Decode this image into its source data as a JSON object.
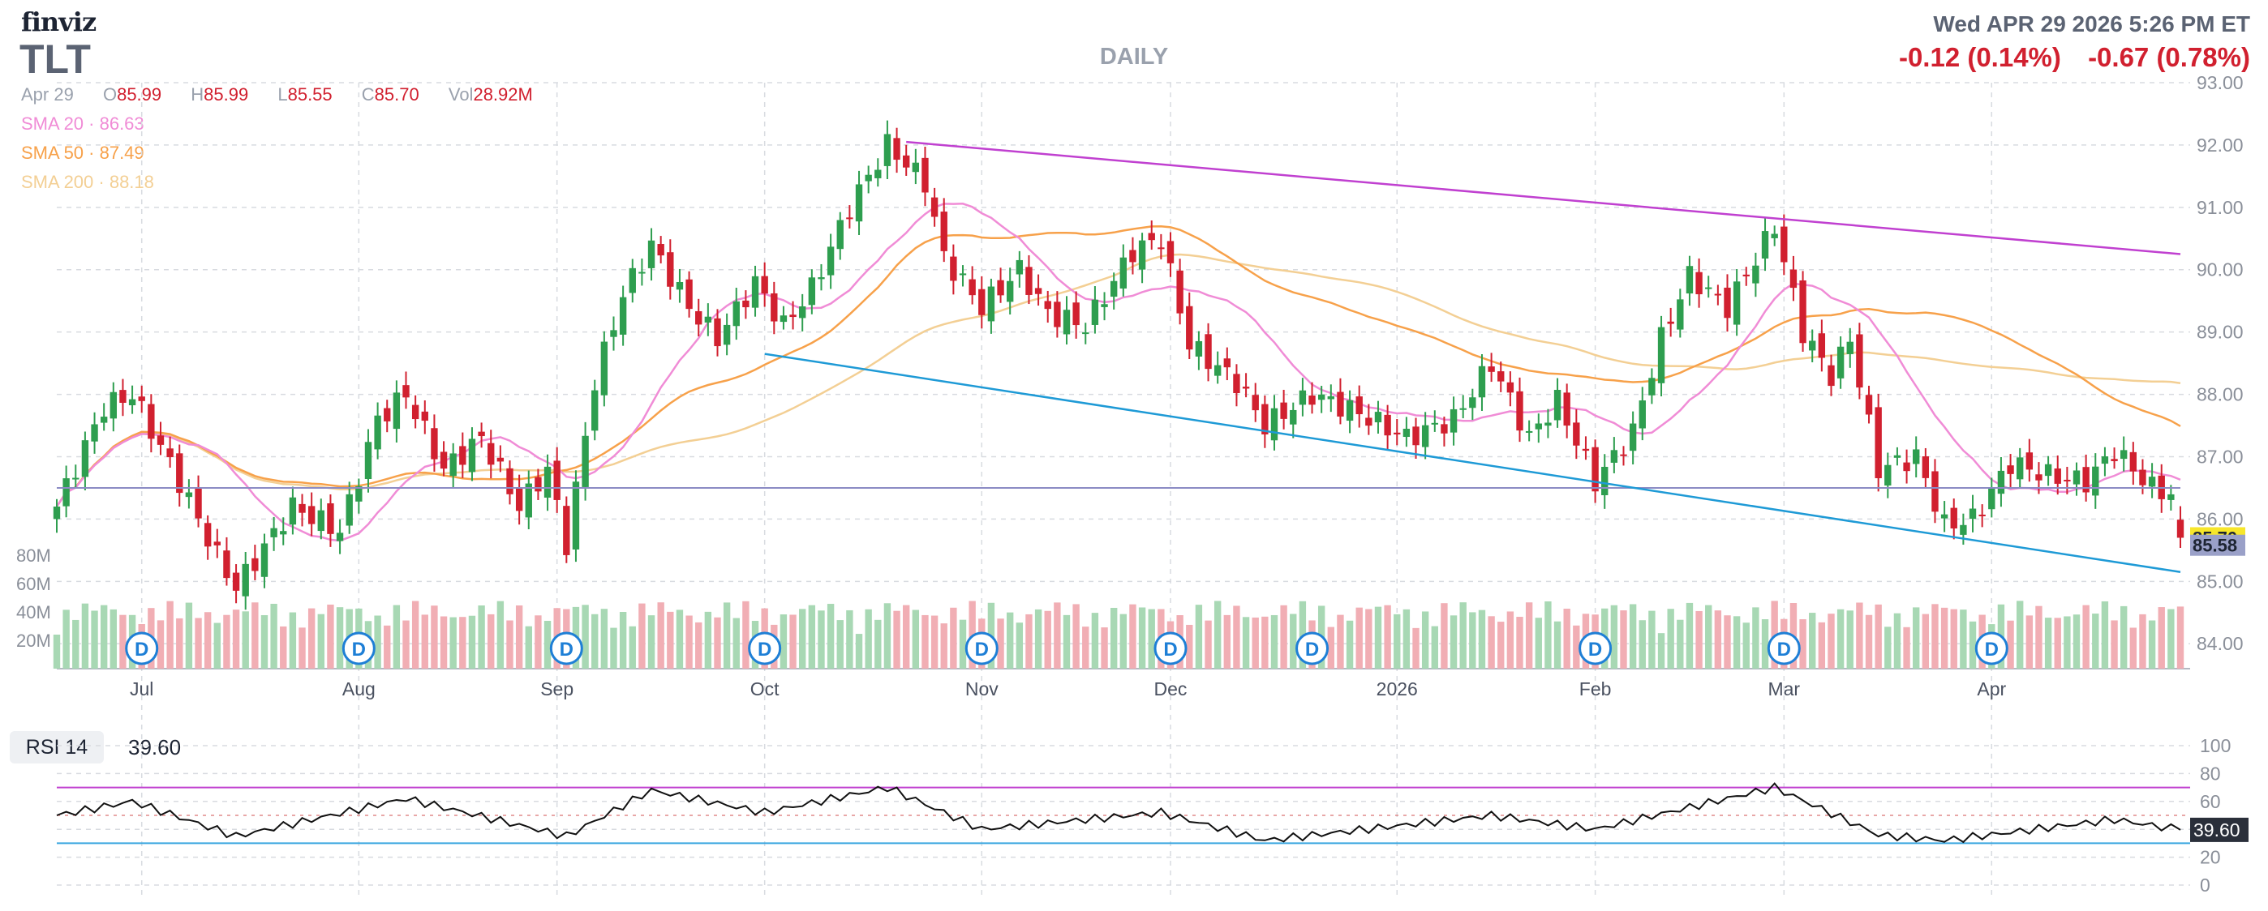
{
  "header": {
    "logo": "finviz",
    "ticker": "TLT",
    "timeframe": "DAILY",
    "datetime": "Wed APR 29 2026 5:26 PM ET",
    "change_after_hours": "-0.12 (0.14%)",
    "change_day": "-0.67 (0.78%)"
  },
  "ohlc": {
    "date": "Apr 29",
    "open_label": "O",
    "open": "85.99",
    "high_label": "H",
    "high": "85.99",
    "low_label": "L",
    "low": "85.55",
    "close_label": "C",
    "close": "85.70",
    "vol_label": "Vol",
    "vol": "28.92M"
  },
  "sma": {
    "sma20": "SMA 20 · 86.63",
    "sma50": "SMA 50 · 87.49",
    "sma200": "SMA 200 · 88.18"
  },
  "colors": {
    "up": "#2e9e4f",
    "down": "#d1202f",
    "sma20": "#f08cd6",
    "sma50": "#f7a14a",
    "sma200": "#f3cf94",
    "trend_upper": "#c040d0",
    "trend_lower": "#1e9ad6",
    "support": "#8b8bc4"
  },
  "badges": {
    "close": "85.70",
    "after_hours": "85.58",
    "rsi": "39.60"
  },
  "rsi": {
    "label": "RSI 14",
    "value": "39.60"
  },
  "dividend_marker": "D",
  "chart_data": {
    "type": "candlestick",
    "title": "",
    "xlabel": "",
    "ylabel": "",
    "ylim": [
      83.6,
      93.0
    ],
    "price_ticks": [
      "93.00",
      "92.00",
      "91.00",
      "90.00",
      "89.00",
      "88.00",
      "87.00",
      "86.00",
      "85.00",
      "84.00"
    ],
    "volume_ticks": [
      "80M",
      "60M",
      "40M",
      "20M"
    ],
    "rsi_ticks": [
      "100",
      "80",
      "60",
      "40",
      "20",
      "0"
    ],
    "x_labels": [
      "Jul",
      "Aug",
      "Sep",
      "Oct",
      "Nov",
      "Dec",
      "2026",
      "Feb",
      "Mar",
      "Apr"
    ],
    "dividend_dates": [
      "2025-07-01",
      "2025-08-01",
      "2025-09-02",
      "2025-10-01",
      "2025-11-03",
      "2025-12-01",
      "2025-12-22",
      "2026-02-02",
      "2026-03-02",
      "2026-04-01"
    ],
    "horizontal_line": 86.5,
    "trendline_upper": {
      "from": [
        "2025-10-22",
        92.05
      ],
      "to": [
        "2026-04-29",
        90.25
      ]
    },
    "trendline_lower": {
      "from": [
        "2025-10-01",
        88.65
      ],
      "to": [
        "2026-04-29",
        85.15
      ]
    },
    "sma_last": {
      "sma20": 86.63,
      "sma50": 87.49,
      "sma200": 88.18
    },
    "anchors": [
      [
        "2025-06-18",
        86.2
      ],
      [
        "2025-06-25",
        87.8
      ],
      [
        "2025-06-30",
        88.0
      ],
      [
        "2025-07-07",
        86.6
      ],
      [
        "2025-07-11",
        85.4
      ],
      [
        "2025-07-15",
        84.9
      ],
      [
        "2025-07-23",
        86.2
      ],
      [
        "2025-07-30",
        85.8
      ],
      [
        "2025-08-05",
        87.6
      ],
      [
        "2025-08-08",
        88.0
      ],
      [
        "2025-08-14",
        86.8
      ],
      [
        "2025-08-20",
        87.3
      ],
      [
        "2025-08-26",
        86.2
      ],
      [
        "2025-08-29",
        86.8
      ],
      [
        "2025-09-02",
        85.6
      ],
      [
        "2025-09-05",
        88.2
      ],
      [
        "2025-09-10",
        89.6
      ],
      [
        "2025-09-15",
        90.4
      ],
      [
        "2025-09-19",
        89.4
      ],
      [
        "2025-09-24",
        88.9
      ],
      [
        "2025-09-30",
        89.8
      ],
      [
        "2025-10-03",
        89.1
      ],
      [
        "2025-10-08",
        89.7
      ],
      [
        "2025-10-14",
        91.0
      ],
      [
        "2025-10-20",
        92.0
      ],
      [
        "2025-10-24",
        91.4
      ],
      [
        "2025-10-28",
        90.2
      ],
      [
        "2025-11-03",
        89.4
      ],
      [
        "2025-11-07",
        90.0
      ],
      [
        "2025-11-12",
        89.3
      ],
      [
        "2025-11-18",
        89.1
      ],
      [
        "2025-11-25",
        90.3
      ],
      [
        "2025-11-28",
        90.5
      ],
      [
        "2025-12-03",
        88.8
      ],
      [
        "2025-12-10",
        88.2
      ],
      [
        "2025-12-15",
        87.5
      ],
      [
        "2025-12-22",
        88.0
      ],
      [
        "2025-12-29",
        87.7
      ],
      [
        "2026-01-05",
        87.3
      ],
      [
        "2026-01-12",
        87.6
      ],
      [
        "2026-01-16",
        88.5
      ],
      [
        "2026-01-22",
        87.3
      ],
      [
        "2026-01-27",
        87.9
      ],
      [
        "2026-02-02",
        86.6
      ],
      [
        "2026-02-06",
        87.4
      ],
      [
        "2026-02-11",
        88.9
      ],
      [
        "2026-02-16",
        89.9
      ],
      [
        "2026-02-20",
        89.4
      ],
      [
        "2026-02-27",
        90.7
      ],
      [
        "2026-03-04",
        89.0
      ],
      [
        "2026-03-09",
        88.3
      ],
      [
        "2026-03-11",
        88.9
      ],
      [
        "2026-03-16",
        86.8
      ],
      [
        "2026-03-20",
        87.0
      ],
      [
        "2026-03-25",
        85.9
      ],
      [
        "2026-03-30",
        86.0
      ],
      [
        "2026-04-03",
        86.9
      ],
      [
        "2026-04-09",
        86.7
      ],
      [
        "2026-04-15",
        86.6
      ],
      [
        "2026-04-20",
        87.1
      ],
      [
        "2026-04-24",
        86.5
      ],
      [
        "2026-04-28",
        86.4
      ],
      [
        "2026-04-29",
        85.7
      ]
    ],
    "rsi_anchors": [
      [
        "2025-06-18",
        50
      ],
      [
        "2025-06-30",
        60
      ],
      [
        "2025-07-15",
        35
      ],
      [
        "2025-08-08",
        62
      ],
      [
        "2025-09-02",
        35
      ],
      [
        "2025-09-15",
        68
      ],
      [
        "2025-10-01",
        52
      ],
      [
        "2025-10-20",
        70
      ],
      [
        "2025-11-03",
        40
      ],
      [
        "2025-11-28",
        52
      ],
      [
        "2025-12-15",
        32
      ],
      [
        "2026-01-16",
        50
      ],
      [
        "2026-02-02",
        40
      ],
      [
        "2026-02-27",
        70
      ],
      [
        "2026-03-16",
        36
      ],
      [
        "2026-03-25",
        32
      ],
      [
        "2026-04-20",
        47
      ],
      [
        "2026-04-29",
        39.6
      ]
    ]
  }
}
